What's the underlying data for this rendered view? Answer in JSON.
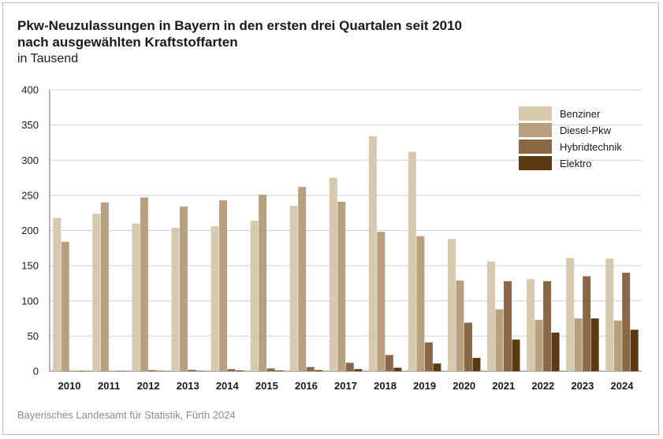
{
  "chart_data": {
    "type": "bar",
    "title": "Pkw-Neuzulassungen in Bayern in den ersten drei Quartalen seit 2010",
    "title_line2": "nach ausgewählten Kraftstoffarten",
    "subtitle": "in Tausend",
    "source": "Bayerisches Landesamt für Statistik, Fürth 2024",
    "categories": [
      "2010",
      "2011",
      "2012",
      "2013",
      "2014",
      "2015",
      "2016",
      "2017",
      "2018",
      "2019",
      "2020",
      "2021",
      "2022",
      "2023",
      "2024"
    ],
    "ylim": [
      0,
      400
    ],
    "yticks": [
      0,
      50,
      100,
      150,
      200,
      250,
      300,
      350,
      400
    ],
    "grid": true,
    "legend_position": "top-right",
    "series": [
      {
        "name": "Benziner",
        "color": "#d6c9af",
        "values": [
          218,
          224,
          210,
          204,
          206,
          214,
          235,
          275,
          334,
          312,
          188,
          156,
          131,
          161,
          160
        ]
      },
      {
        "name": "Diesel-Pkw",
        "color": "#b8a07f",
        "values": [
          184,
          240,
          247,
          234,
          243,
          251,
          262,
          241,
          198,
          192,
          129,
          88,
          73,
          75,
          72
        ]
      },
      {
        "name": "Hybridtechnik",
        "color": "#8a6846",
        "values": [
          0.5,
          0.5,
          1.5,
          2,
          3,
          4,
          6,
          12,
          23,
          41,
          69,
          128,
          128,
          135,
          140
        ]
      },
      {
        "name": "Elektro",
        "color": "#5c3b14",
        "values": [
          0.2,
          0.3,
          0.4,
          0.6,
          1,
          1,
          1.5,
          3,
          5,
          11,
          19,
          45,
          55,
          75,
          59
        ]
      }
    ]
  }
}
